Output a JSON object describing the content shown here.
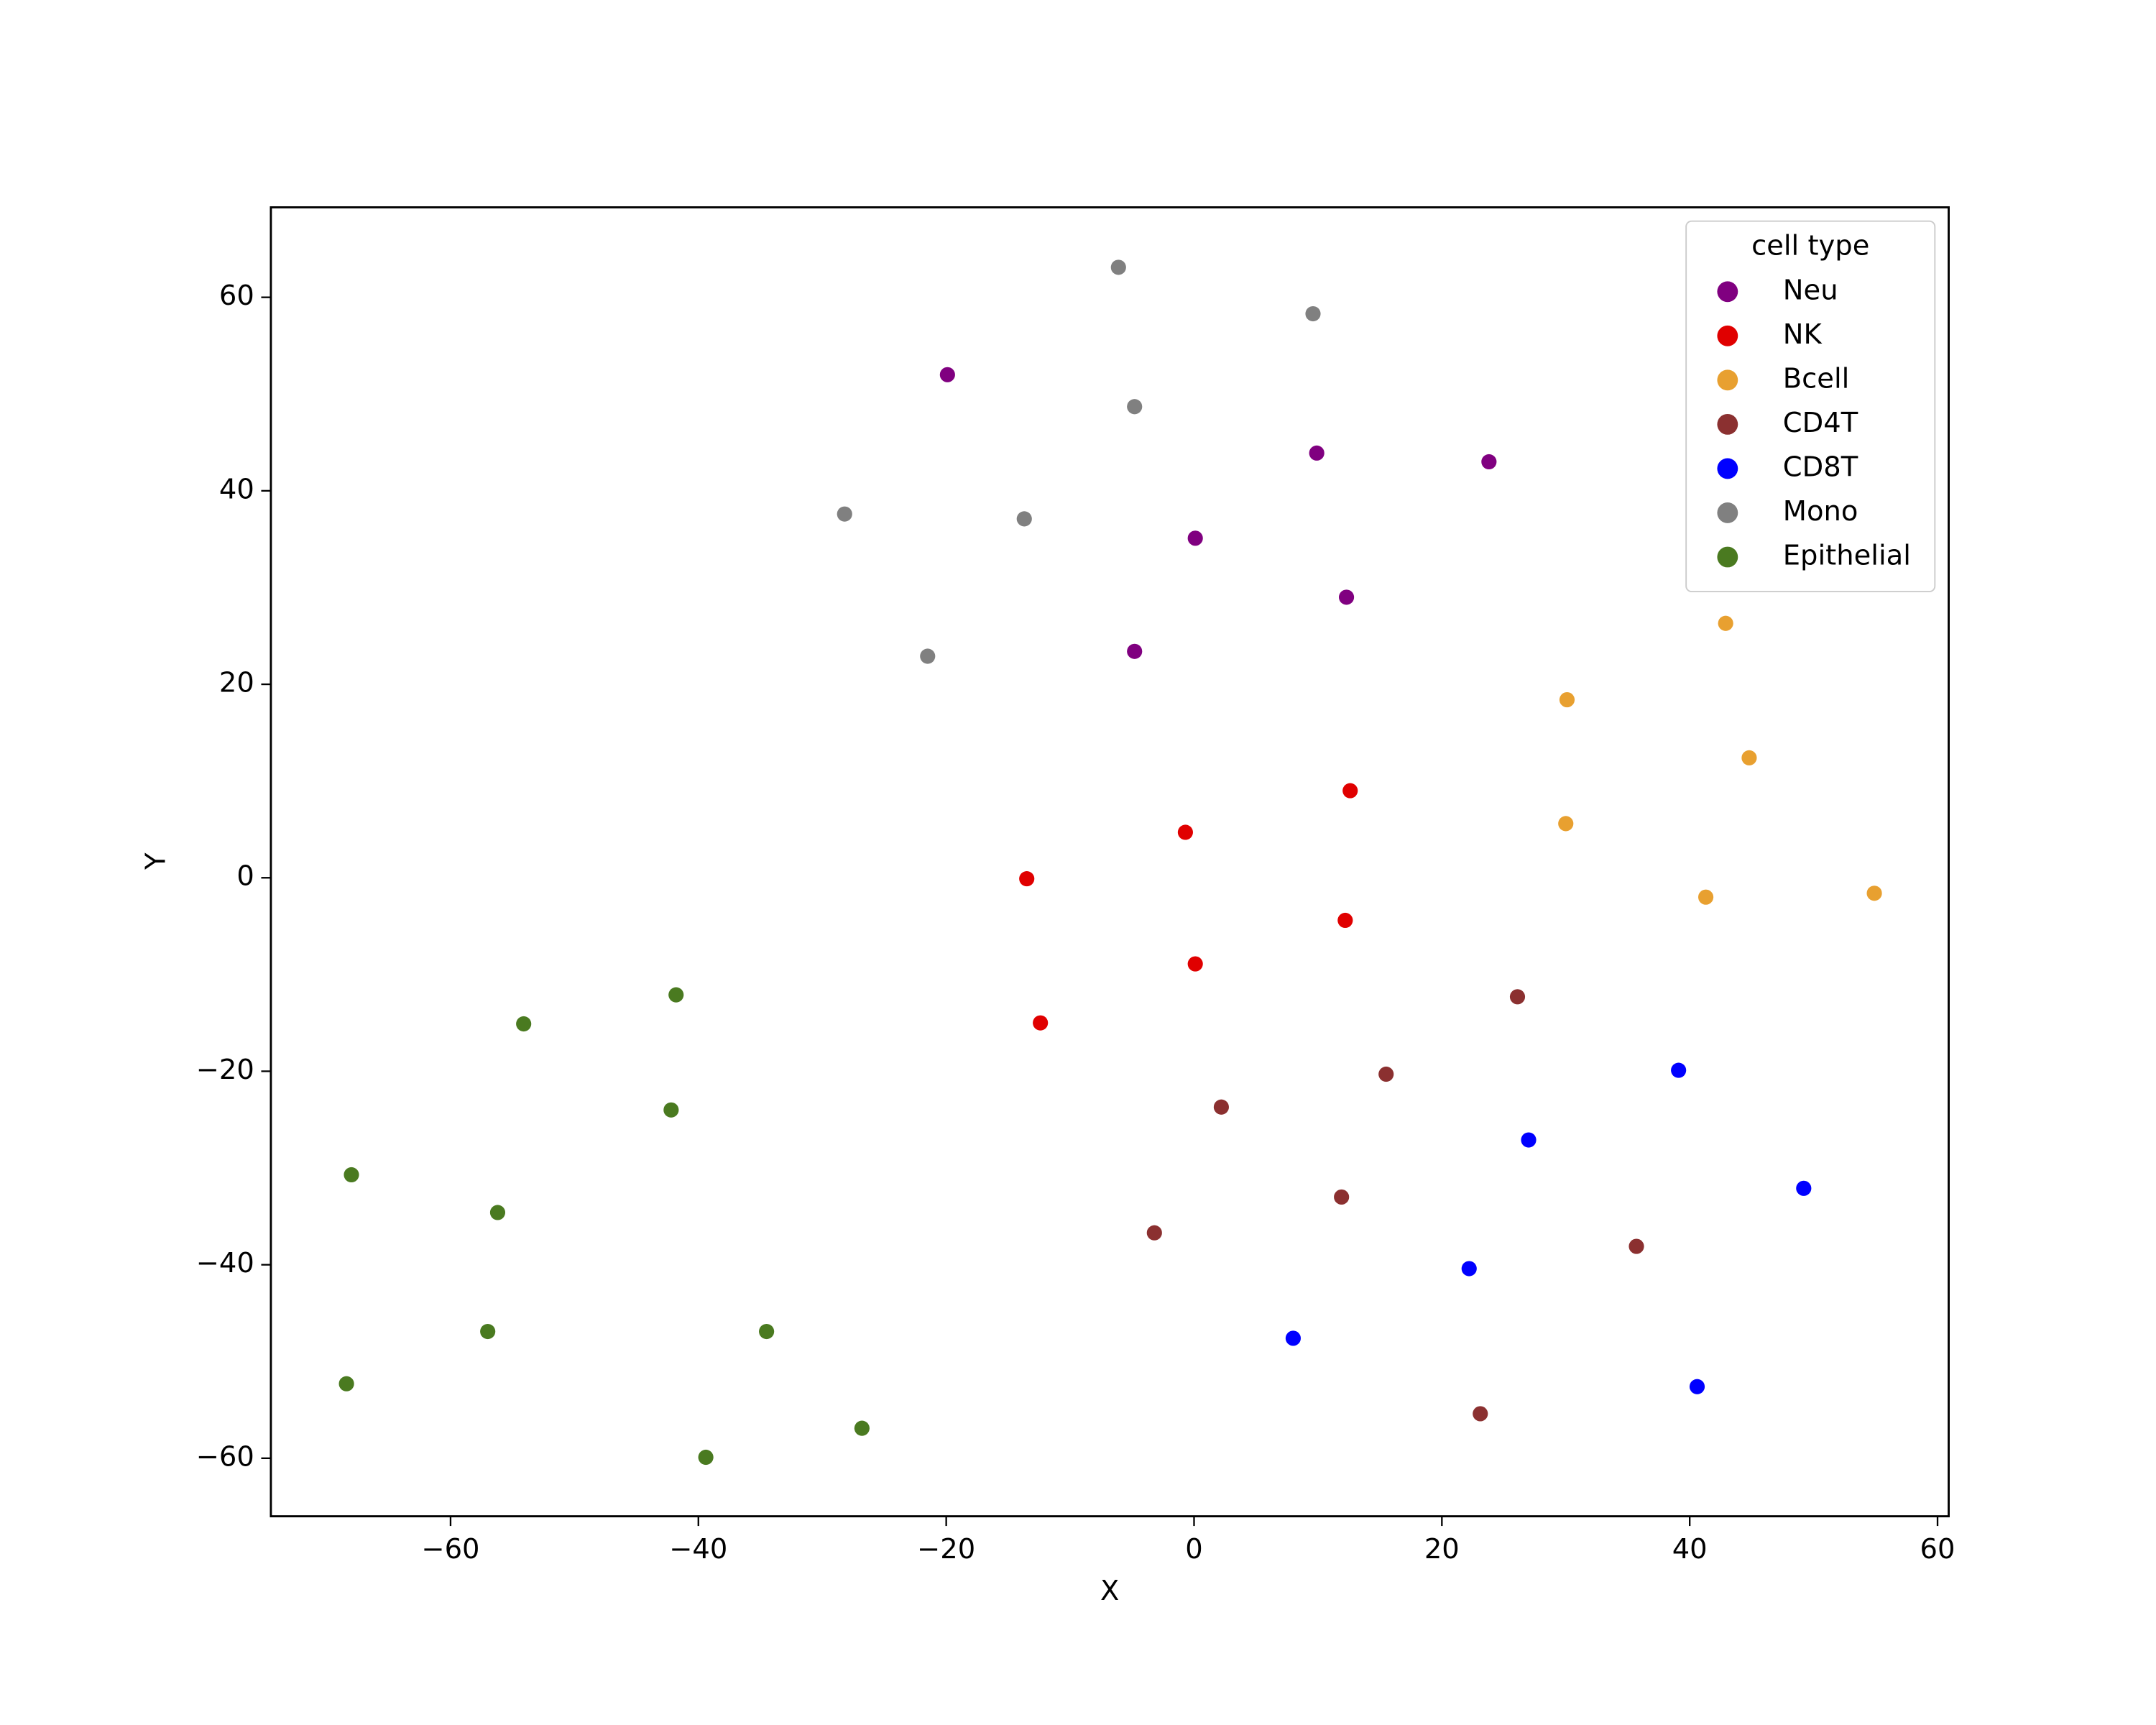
{
  "chart_data": {
    "type": "scatter",
    "x_label": "X",
    "y_label": "Y",
    "xlim": [
      -74.5,
      60.9
    ],
    "ylim": [
      -66,
      69.3
    ],
    "xticks": [
      {
        "value": -60,
        "label": "−60"
      },
      {
        "value": -40,
        "label": "−40"
      },
      {
        "value": -20,
        "label": "−20"
      },
      0,
      20,
      40,
      60
    ],
    "yticks": [
      {
        "value": -60,
        "label": "−60"
      },
      {
        "value": -40,
        "label": "−40"
      },
      {
        "value": -20,
        "label": "−20"
      },
      0,
      20,
      40,
      60
    ],
    "grid": false,
    "legend_title": "cell type",
    "legend_position": "upper right",
    "series": [
      {
        "name": "Neu",
        "color": "#800080",
        "x": [
          -19.9,
          9.9,
          23.8,
          0.1,
          12.3,
          -4.8
        ],
        "y": [
          52.0,
          43.9,
          43.0,
          35.1,
          29.0,
          23.4
        ]
      },
      {
        "name": "NK",
        "color": "#e00000",
        "x": [
          12.6,
          -0.7,
          -13.5,
          12.2,
          0.1,
          -12.4
        ],
        "y": [
          9.0,
          4.7,
          -0.1,
          -4.4,
          -8.9,
          -15.0
        ]
      },
      {
        "name": "Bcell",
        "color": "#e8a030",
        "x": [
          42.9,
          30.1,
          44.8,
          30.0,
          41.3,
          54.9
        ],
        "y": [
          26.3,
          18.4,
          12.4,
          5.6,
          -2.0,
          -1.6
        ]
      },
      {
        "name": "CD4T",
        "color": "#8b3030",
        "x": [
          26.1,
          15.5,
          2.2,
          11.9,
          -3.2,
          35.7,
          23.1
        ],
        "y": [
          -12.3,
          -20.3,
          -23.7,
          -33.0,
          -36.7,
          -38.1,
          -55.4
        ]
      },
      {
        "name": "CD8T",
        "color": "#0000ff",
        "x": [
          39.1,
          27.0,
          49.2,
          22.2,
          8.0,
          40.6
        ],
        "y": [
          -19.9,
          -27.1,
          -32.1,
          -40.4,
          -47.6,
          -52.6
        ]
      },
      {
        "name": "Mono",
        "color": "#808080",
        "x": [
          -6.1,
          9.6,
          -4.8,
          -28.2,
          -13.7,
          -21.5
        ],
        "y": [
          63.1,
          58.3,
          48.7,
          37.6,
          37.1,
          22.9
        ]
      },
      {
        "name": "Epithelial",
        "color": "#4a7a20",
        "x": [
          -41.8,
          -54.1,
          -42.2,
          -68.0,
          -56.2,
          -57.0,
          -34.5,
          -68.4,
          -26.8,
          -39.4
        ],
        "y": [
          -12.1,
          -15.1,
          -24.0,
          -30.7,
          -34.6,
          -46.9,
          -46.9,
          -52.3,
          -56.9,
          -59.9
        ]
      }
    ]
  }
}
